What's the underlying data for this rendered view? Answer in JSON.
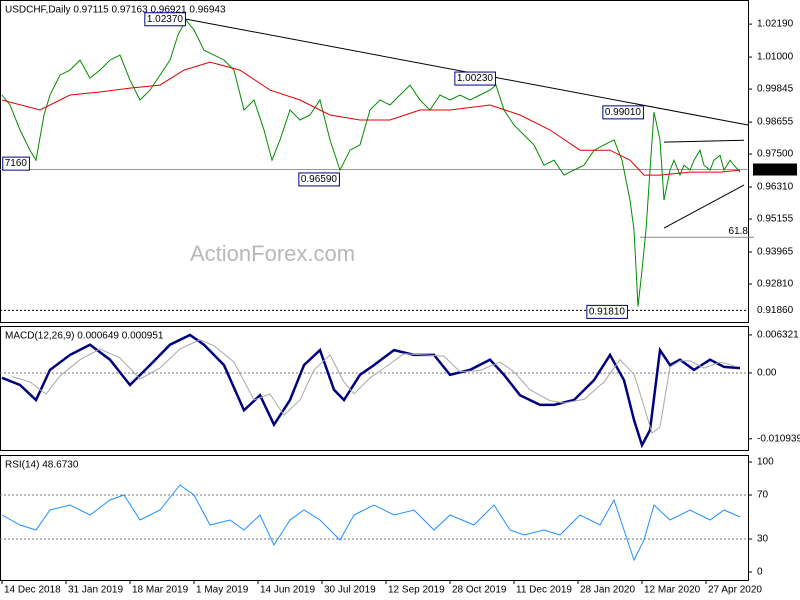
{
  "chart_data": [
    {
      "type": "line",
      "title": "USDCHF,Daily  0.97115 0.97163 0.96921 0.96943",
      "watermark": "ActionForex.com",
      "xlim": [
        -1,
        373
      ],
      "ylim": [
        0.9144,
        1.0306
      ],
      "yticks": [
        {
          "value": 1.0219,
          "label": "1.02190"
        },
        {
          "value": 1.01,
          "label": "1.01000"
        },
        0.99845,
        0.98655,
        {
          "value": 0.975,
          "label": "0.97500"
        },
        {
          "value": 0.9631,
          "label": "0.96310"
        },
        0.95155,
        0.93965,
        {
          "value": 0.9281,
          "label": "0.92810"
        }
      ],
      "series": [
        {
          "color": "#008c00",
          "x": [
            0,
            4,
            9,
            14,
            17,
            21,
            24,
            29,
            34,
            39,
            44,
            49,
            54,
            59,
            64,
            69,
            74,
            79,
            84,
            88,
            92,
            96,
            101,
            106,
            111,
            116,
            121,
            126,
            131,
            135,
            139,
            144,
            149,
            154,
            159,
            164,
            169,
            174,
            179,
            184,
            189,
            194,
            199,
            204,
            209,
            214,
            219,
            224,
            229,
            234,
            239,
            244,
            247,
            251,
            256,
            261,
            266,
            271,
            276,
            281,
            286,
            291,
            296,
            301,
            306,
            310,
            314,
            316,
            318,
            320,
            322,
            324,
            326,
            329,
            331,
            334,
            336,
            339,
            341,
            344,
            346,
            349,
            351,
            354,
            356,
            359,
            361,
            364,
            366,
            369
          ],
          "values": [
            0.9963,
            0.9927,
            0.9837,
            0.9764,
            0.9728,
            0.9891,
            0.9963,
            1.0035,
            1.0053,
            1.0089,
            1.0024,
            1.0053,
            1.0089,
            1.0107,
            1.0017,
            0.9945,
            0.9981,
            1.0035,
            1.0089,
            1.018,
            1.0234,
            1.0198,
            1.0125,
            1.0107,
            1.0089,
            1.0053,
            0.9909,
            0.9945,
            0.9837,
            0.9728,
            0.9801,
            0.9909,
            0.9873,
            0.9891,
            0.9945,
            0.9801,
            0.9692,
            0.9764,
            0.9783,
            0.9909,
            0.9945,
            0.9927,
            0.9963,
            0.9999,
            0.9945,
            0.9909,
            0.9963,
            0.9945,
            0.9963,
            0.9945,
            0.9963,
            0.9981,
            0.9999,
            0.9909,
            0.9855,
            0.9819,
            0.9783,
            0.971,
            0.9728,
            0.9674,
            0.9692,
            0.971,
            0.9764,
            0.9783,
            0.9801,
            0.9728,
            0.9584,
            0.9476,
            0.92,
            0.9331,
            0.9476,
            0.9692,
            0.9901,
            0.9801,
            0.9584,
            0.9692,
            0.9728,
            0.9674,
            0.971,
            0.9692,
            0.9728,
            0.9764,
            0.971,
            0.9692,
            0.9728,
            0.9746,
            0.9692,
            0.9728,
            0.971,
            0.9685
          ]
        },
        {
          "color": "#e00000",
          "x": [
            0,
            19,
            34,
            49,
            64,
            79,
            91,
            104,
            119,
            134,
            149,
            164,
            179,
            194,
            209,
            224,
            244,
            259,
            274,
            289,
            304,
            314,
            321,
            329,
            344,
            359,
            369
          ],
          "values": [
            0.9945,
            0.9909,
            0.9963,
            0.9974,
            0.9988,
            0.9999,
            1.0053,
            1.0082,
            1.0053,
            0.9981,
            0.9945,
            0.9891,
            0.9873,
            0.9873,
            0.9909,
            0.9909,
            0.9927,
            0.9891,
            0.9837,
            0.9764,
            0.9764,
            0.9728,
            0.9674,
            0.9674,
            0.9685,
            0.9685,
            0.9692
          ]
        }
      ],
      "trendlines": [
        {
          "x": [
            92,
            373
          ],
          "y": [
            1.0237,
            0.9855
          ]
        },
        {
          "x": [
            331,
            371
          ],
          "y": [
            0.9793,
            0.98
          ]
        },
        {
          "x": [
            331,
            371
          ],
          "y": [
            0.9483,
            0.9638
          ]
        }
      ],
      "annotations": [
        {
          "text": "1.02370",
          "x": 92,
          "y": 1.0237
        },
        {
          "text": "1.00230",
          "x": 247,
          "y": 1.0023
        },
        {
          "text": "0.99010",
          "x": 321,
          "y": 0.9901
        },
        {
          "text": "0.96590",
          "x": 169,
          "y": 0.9659
        },
        {
          "text": "7160",
          "x": 14,
          "y": 0.9716
        },
        {
          "text": "0.91810",
          "x": 313,
          "y": 0.9181
        }
      ],
      "fib": {
        "label": "61.8",
        "value": 0.945,
        "x": [
          319,
          373
        ]
      },
      "levels": [
        {
          "value": 0.9186,
          "label": "0.91860"
        }
      ],
      "last_price": {
        "value": 0.96943,
        "label": "0.96943"
      }
    },
    {
      "type": "line",
      "title": "MACD(12,26,9) 0.000649 0.000951",
      "xlim": [
        -1,
        373
      ],
      "ylim": [
        -0.0128,
        0.0078
      ],
      "yticks": [
        0.006321,
        {
          "value": 0,
          "label": "0.00"
        },
        -0.010939
      ],
      "series": [
        {
          "color": "#000080",
          "x": [
            0,
            9,
            17,
            24,
            34,
            44,
            54,
            64,
            74,
            84,
            94,
            101,
            111,
            121,
            129,
            136,
            144,
            151,
            159,
            166,
            171,
            179,
            186,
            196,
            206,
            216,
            224,
            234,
            244,
            251,
            259,
            269,
            276,
            286,
            296,
            304,
            311,
            316,
            320,
            324,
            329,
            334,
            339,
            346,
            354,
            361,
            369
          ],
          "values": [
            -0.0008,
            -0.002,
            -0.0045,
            0.0005,
            0.003,
            0.0047,
            0.0022,
            -0.002,
            0.0013,
            0.0047,
            0.0063,
            0.0047,
            0.0013,
            -0.0062,
            -0.0037,
            -0.0086,
            -0.0045,
            0.0013,
            0.0038,
            -0.0028,
            -0.0045,
            -0.0003,
            0.0013,
            0.0038,
            0.003,
            0.003,
            -0.0003,
            0.0005,
            0.0022,
            -0.0003,
            -0.0037,
            -0.0053,
            -0.0053,
            -0.0045,
            -0.0012,
            0.003,
            -0.0012,
            -0.0078,
            -0.012,
            -0.0095,
            0.0038,
            0.0013,
            0.0022,
            0.0005,
            0.0022,
            0.001,
            0.0008
          ]
        },
        {
          "color": "#a8a8a8",
          "x": [
            5,
            14,
            22,
            29,
            39,
            49,
            59,
            69,
            79,
            89,
            99,
            106,
            116,
            126,
            134,
            141,
            149,
            156,
            164,
            171,
            176,
            184,
            191,
            201,
            211,
            221,
            229,
            239,
            249,
            256,
            264,
            274,
            281,
            291,
            301,
            309,
            316,
            321,
            325,
            329,
            334,
            339,
            344,
            351,
            359,
            366
          ],
          "values": [
            -0.0006,
            -0.0015,
            -0.0035,
            -0.0005,
            0.0022,
            0.004,
            0.0025,
            -0.001,
            0.0008,
            0.004,
            0.0055,
            0.0045,
            0.0018,
            -0.0045,
            -0.0035,
            -0.007,
            -0.0045,
            0.0005,
            0.003,
            -0.0015,
            -0.0035,
            -0.0008,
            0.0008,
            0.0032,
            0.003,
            0.0028,
            0.0002,
            0.0004,
            0.0018,
            0.0002,
            -0.0028,
            -0.0046,
            -0.005,
            -0.0044,
            -0.0015,
            0.0022,
            -0.0002,
            -0.0055,
            -0.01,
            -0.009,
            0.001,
            0.002,
            0.002,
            0.0008,
            0.0018,
            0.0012
          ]
        }
      ],
      "levels": [
        0
      ]
    },
    {
      "type": "line",
      "title": "RSI(14) 48.6730",
      "xlim": [
        -1,
        373
      ],
      "ylim": [
        -7.3,
        106.4
      ],
      "yticks": [
        100,
        70,
        30,
        0
      ],
      "series": [
        {
          "color": "#1e90ff",
          "x": [
            0,
            9,
            17,
            24,
            34,
            44,
            54,
            61,
            69,
            79,
            89,
            96,
            104,
            114,
            121,
            129,
            136,
            144,
            151,
            159,
            169,
            176,
            186,
            196,
            206,
            216,
            224,
            236,
            246,
            254,
            261,
            271,
            279,
            289,
            299,
            306,
            311,
            316,
            321,
            326,
            334,
            344,
            354,
            361,
            369
          ],
          "values": [
            51.8,
            42.7,
            38.2,
            56.4,
            60.9,
            51.8,
            65.5,
            70,
            47.3,
            56.4,
            79.1,
            70,
            42.7,
            47.3,
            38.2,
            51.8,
            24.5,
            47.3,
            56.4,
            47.3,
            29.1,
            51.8,
            60.9,
            51.8,
            56.4,
            38.2,
            51.8,
            42.7,
            60.9,
            38.2,
            33.6,
            38.2,
            33.6,
            51.8,
            42.7,
            65.5,
            38.2,
            10.9,
            29.1,
            60.9,
            47.3,
            56.4,
            47.3,
            56.4,
            50.0
          ]
        }
      ],
      "levels": [
        70,
        30
      ],
      "xticks": [
        {
          "value": 0,
          "label": "14 Dec 2018"
        },
        {
          "value": 32,
          "label": "31 Jan 2019"
        },
        {
          "value": 64,
          "label": "18 Mar 2019"
        },
        {
          "value": 96,
          "label": "1 May 2019"
        },
        {
          "value": 128,
          "label": "14 Jun 2019"
        },
        {
          "value": 160,
          "label": "30 Jul 2019"
        },
        {
          "value": 192,
          "label": "12 Sep 2019"
        },
        {
          "value": 224,
          "label": "28 Oct 2019"
        },
        {
          "value": 256,
          "label": "11 Dec 2019"
        },
        {
          "value": 288,
          "label": "28 Jan 2020"
        },
        {
          "value": 320,
          "label": "12 Mar 2020"
        },
        {
          "value": 352,
          "label": "27 Apr 2020"
        }
      ]
    }
  ]
}
